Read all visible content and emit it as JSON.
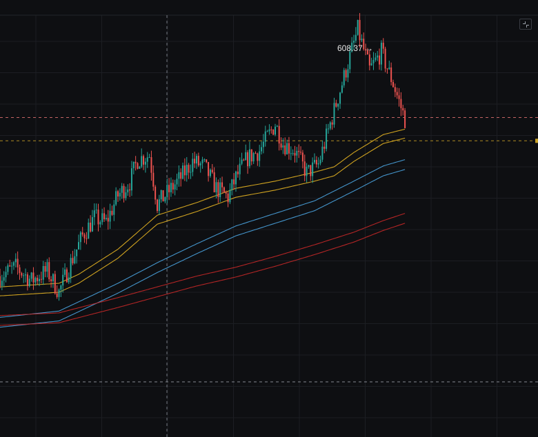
{
  "colors": {
    "background": "#0e0f12",
    "grid": "#1c1e23",
    "up": "#26a69a",
    "down": "#ef5350",
    "ema_fast": "#e6b422",
    "ema_mid": "#4aa3df",
    "ema_slow": "#c62828",
    "level_red": "#e57373",
    "level_yellow": "#c9a227",
    "level_white": "#9aa0a8",
    "crosshair": "#8a8f98"
  },
  "icons": {
    "corner_button": "fullscreen-collapse-icon",
    "top_left": "panel-icon"
  },
  "chart_data": {
    "type": "candlestick",
    "title": "",
    "xlabel": "",
    "ylabel": "",
    "ylim": [
      150,
      650
    ],
    "grid": true,
    "peak": {
      "label": "608.37",
      "value": 608.37
    },
    "levels": [
      {
        "value": 507,
        "color": "red",
        "style": "dashed"
      },
      {
        "value": 481,
        "color": "yellow",
        "style": "dashed"
      },
      {
        "value": 212,
        "color": "white",
        "style": "dashed"
      }
    ],
    "trend_anchors": [
      {
        "t": 0,
        "v": 330
      },
      {
        "t": 8,
        "v": 340
      },
      {
        "t": 16,
        "v": 325
      },
      {
        "t": 24,
        "v": 336
      },
      {
        "t": 30,
        "v": 312
      },
      {
        "t": 36,
        "v": 345
      },
      {
        "t": 42,
        "v": 375
      },
      {
        "t": 48,
        "v": 395
      },
      {
        "t": 54,
        "v": 390
      },
      {
        "t": 60,
        "v": 420
      },
      {
        "t": 66,
        "v": 435
      },
      {
        "t": 70,
        "v": 460
      },
      {
        "t": 76,
        "v": 465
      },
      {
        "t": 80,
        "v": 410
      },
      {
        "t": 86,
        "v": 425
      },
      {
        "t": 92,
        "v": 440
      },
      {
        "t": 98,
        "v": 458
      },
      {
        "t": 104,
        "v": 452
      },
      {
        "t": 110,
        "v": 428
      },
      {
        "t": 116,
        "v": 418
      },
      {
        "t": 120,
        "v": 440
      },
      {
        "t": 126,
        "v": 462
      },
      {
        "t": 132,
        "v": 470
      },
      {
        "t": 140,
        "v": 500
      },
      {
        "t": 144,
        "v": 478
      },
      {
        "t": 150,
        "v": 470
      },
      {
        "t": 156,
        "v": 445
      },
      {
        "t": 162,
        "v": 455
      },
      {
        "t": 168,
        "v": 500
      },
      {
        "t": 176,
        "v": 560
      },
      {
        "t": 182,
        "v": 605
      },
      {
        "t": 188,
        "v": 560
      },
      {
        "t": 194,
        "v": 580
      },
      {
        "t": 200,
        "v": 545
      },
      {
        "t": 206,
        "v": 505
      }
    ],
    "ema_anchors": {
      "fast": [
        {
          "t": 0,
          "v": 318
        },
        {
          "t": 30,
          "v": 322
        },
        {
          "t": 40,
          "v": 332
        },
        {
          "t": 60,
          "v": 360
        },
        {
          "t": 80,
          "v": 398
        },
        {
          "t": 100,
          "v": 412
        },
        {
          "t": 120,
          "v": 428
        },
        {
          "t": 140,
          "v": 436
        },
        {
          "t": 160,
          "v": 446
        },
        {
          "t": 170,
          "v": 452
        },
        {
          "t": 180,
          "v": 468
        },
        {
          "t": 195,
          "v": 488
        },
        {
          "t": 206,
          "v": 494
        }
      ],
      "mid": [
        {
          "t": 0,
          "v": 284
        },
        {
          "t": 30,
          "v": 291
        },
        {
          "t": 60,
          "v": 322
        },
        {
          "t": 80,
          "v": 345
        },
        {
          "t": 100,
          "v": 366
        },
        {
          "t": 120,
          "v": 386
        },
        {
          "t": 140,
          "v": 400
        },
        {
          "t": 160,
          "v": 414
        },
        {
          "t": 180,
          "v": 436
        },
        {
          "t": 195,
          "v": 453
        },
        {
          "t": 206,
          "v": 460
        }
      ],
      "slow": [
        {
          "t": 0,
          "v": 286
        },
        {
          "t": 30,
          "v": 289
        },
        {
          "t": 60,
          "v": 306
        },
        {
          "t": 80,
          "v": 318
        },
        {
          "t": 100,
          "v": 330
        },
        {
          "t": 120,
          "v": 340
        },
        {
          "t": 140,
          "v": 352
        },
        {
          "t": 160,
          "v": 365
        },
        {
          "t": 180,
          "v": 379
        },
        {
          "t": 195,
          "v": 392
        },
        {
          "t": 206,
          "v": 400
        }
      ]
    }
  }
}
